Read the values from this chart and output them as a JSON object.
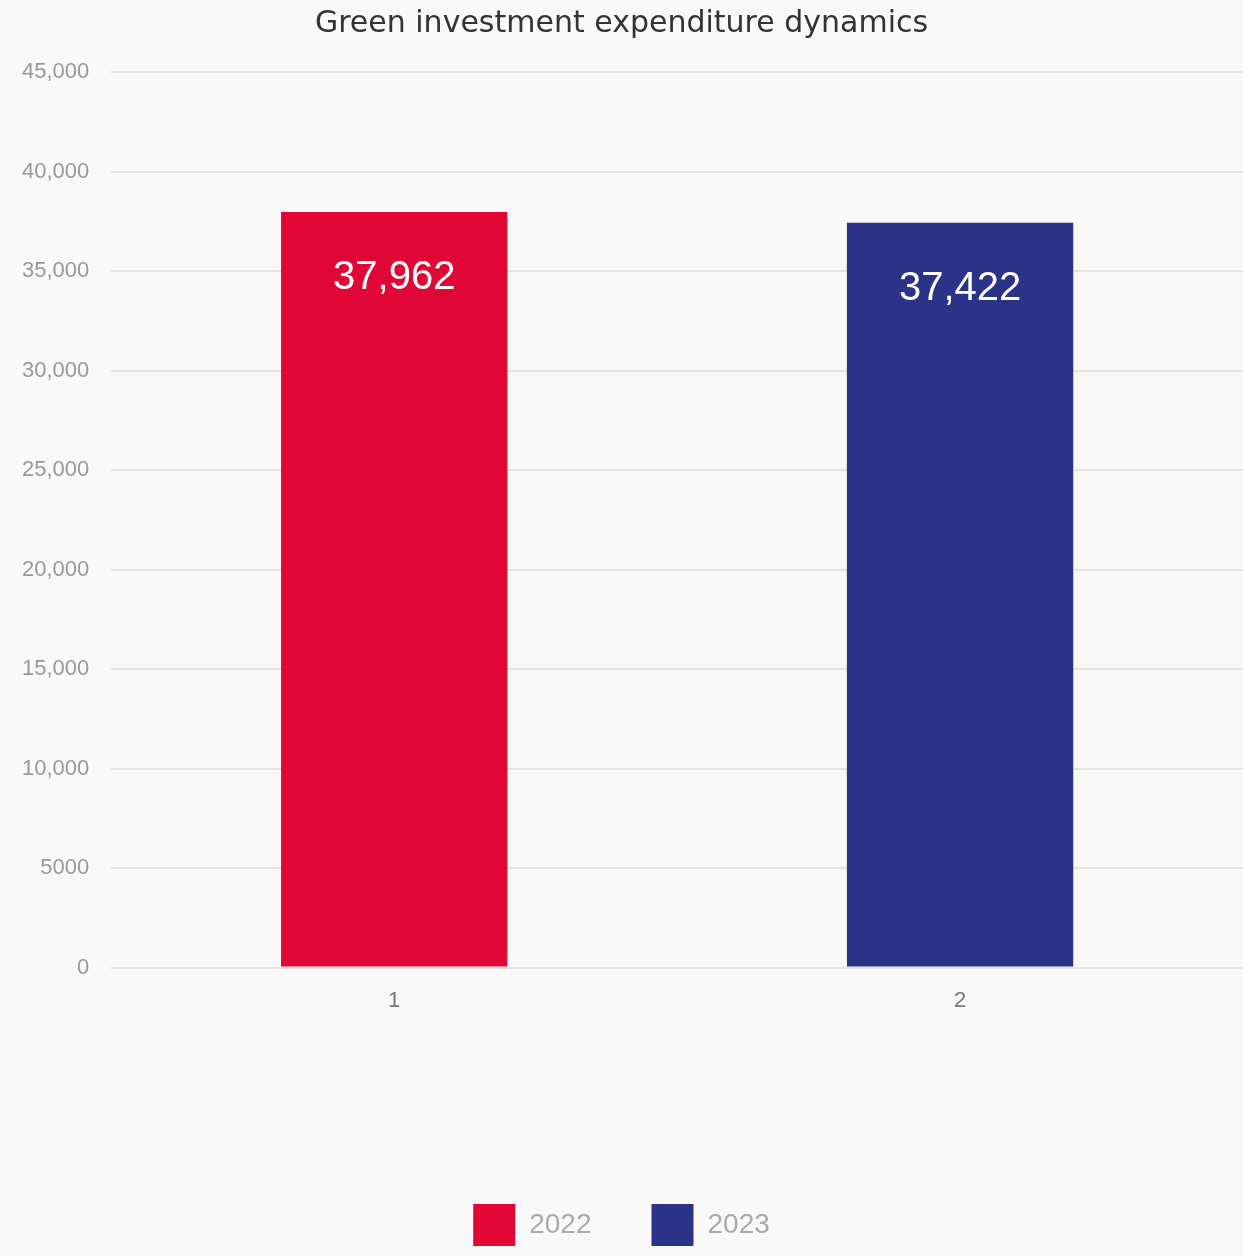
{
  "chart_data": {
    "type": "bar",
    "title": "Green investment expenditure dynamics",
    "categories": [
      "1",
      "2"
    ],
    "series": [
      {
        "name": "2022",
        "color": "#e00737",
        "values": [
          37962,
          null
        ],
        "value_labels": [
          "37,962",
          null
        ]
      },
      {
        "name": "2023",
        "color": "#2a3388",
        "values": [
          null,
          37422
        ],
        "value_labels": [
          null,
          "37,422"
        ]
      }
    ],
    "ylim": [
      0,
      45000
    ],
    "yticks": [
      0,
      5000,
      {
        "value": 10000,
        "label": "10,000"
      },
      {
        "value": 15000,
        "label": "15,000"
      },
      {
        "value": 20000,
        "label": "20,000"
      },
      {
        "value": 25000,
        "label": "25,000"
      },
      {
        "value": 30000,
        "label": "30,000"
      },
      {
        "value": 35000,
        "label": "35,000"
      },
      {
        "value": 40000,
        "label": "40,000"
      },
      {
        "value": 45000,
        "label": "45,000"
      }
    ],
    "grid": "y",
    "legend": "bottom"
  }
}
